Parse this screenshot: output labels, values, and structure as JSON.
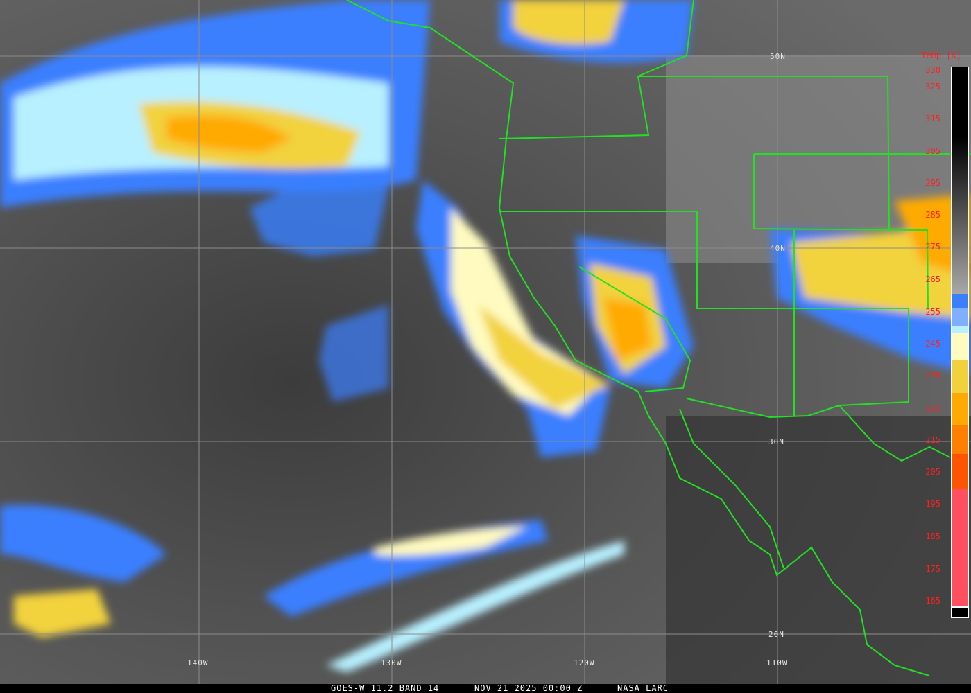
{
  "caption": {
    "satellite": "GOES-W 11.2 BAND 14",
    "datetime": "NOV 21 2025 00:00 Z",
    "credit": "NASA LARC"
  },
  "colorbar": {
    "title": "Temp [K]",
    "ticks": [
      "330",
      "325",
      "315",
      "305",
      "295",
      "285",
      "275",
      "265",
      "255",
      "245",
      "235",
      "225",
      "215",
      "205",
      "195",
      "185",
      "175",
      "165"
    ]
  },
  "grid": {
    "longitudes": [
      "140W",
      "130W",
      "120W",
      "110W"
    ],
    "latitudes": [
      "50N",
      "40N",
      "30N",
      "20N"
    ]
  },
  "colors": {
    "coastline": "#22e022",
    "cold_cloud_blue": "#3a7fff",
    "yellow": "#f2d23c",
    "orange": "#ffaa00",
    "red": "#ff5060"
  }
}
